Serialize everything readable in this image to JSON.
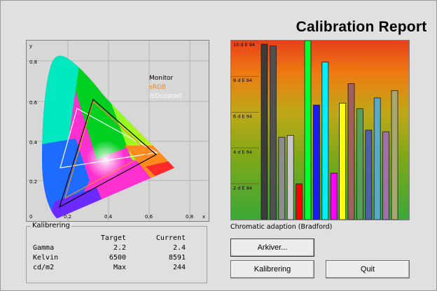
{
  "window": {
    "title": "Calibration Report"
  },
  "cie_chart": {
    "x_label": "x",
    "y_label": "y",
    "x_ticks": [
      "0",
      "0.2",
      "0.4",
      "0.6",
      "0.8"
    ],
    "y_ticks": [
      "0.2",
      "0.4",
      "0.6",
      "0.8"
    ],
    "legend": [
      {
        "label": "Monitor",
        "color": "#000000"
      },
      {
        "label": "sRGB",
        "color": "#f08a2a"
      },
      {
        "label": "ISOcoated",
        "color": "#ffffff"
      }
    ]
  },
  "chart_data": {
    "type": "bar",
    "title": "",
    "y_ticks": [
      "2 d E 94",
      "4 d E 94",
      "6 d E 94",
      "8 d E 94",
      "10 d E 94"
    ],
    "ylim": [
      0,
      10
    ],
    "values": [
      9.8,
      9.7,
      4.6,
      4.7,
      2.0,
      10.0,
      6.4,
      8.8,
      2.6,
      6.5,
      7.6,
      6.2,
      5.0,
      6.8,
      4.9,
      7.2
    ],
    "colors": [
      "#3c3c3c",
      "#505050",
      "#8c8c8c",
      "#c8c8c8",
      "#ff0000",
      "#00ff33",
      "#1a1aff",
      "#00f0ff",
      "#ff00ff",
      "#ffff00",
      "#a06060",
      "#58a058",
      "#5060a8",
      "#58a8c8",
      "#a070a8",
      "#a8a870"
    ]
  },
  "caption": "Chromatic adaption (Bradford)",
  "kalibrering": {
    "group_label": "Kalibrering",
    "headers": [
      "",
      "Target",
      "Current"
    ],
    "rows": [
      {
        "label": "Gamma",
        "target": "2.2",
        "current": "2.4"
      },
      {
        "label": "Kelvin",
        "target": "6500",
        "current": "8591"
      },
      {
        "label": "cd/m2",
        "target": "Max",
        "current": "244"
      }
    ]
  },
  "buttons": {
    "archive": "Arkiver...",
    "calibrate": "Kalibrering",
    "quit": "Quit"
  }
}
